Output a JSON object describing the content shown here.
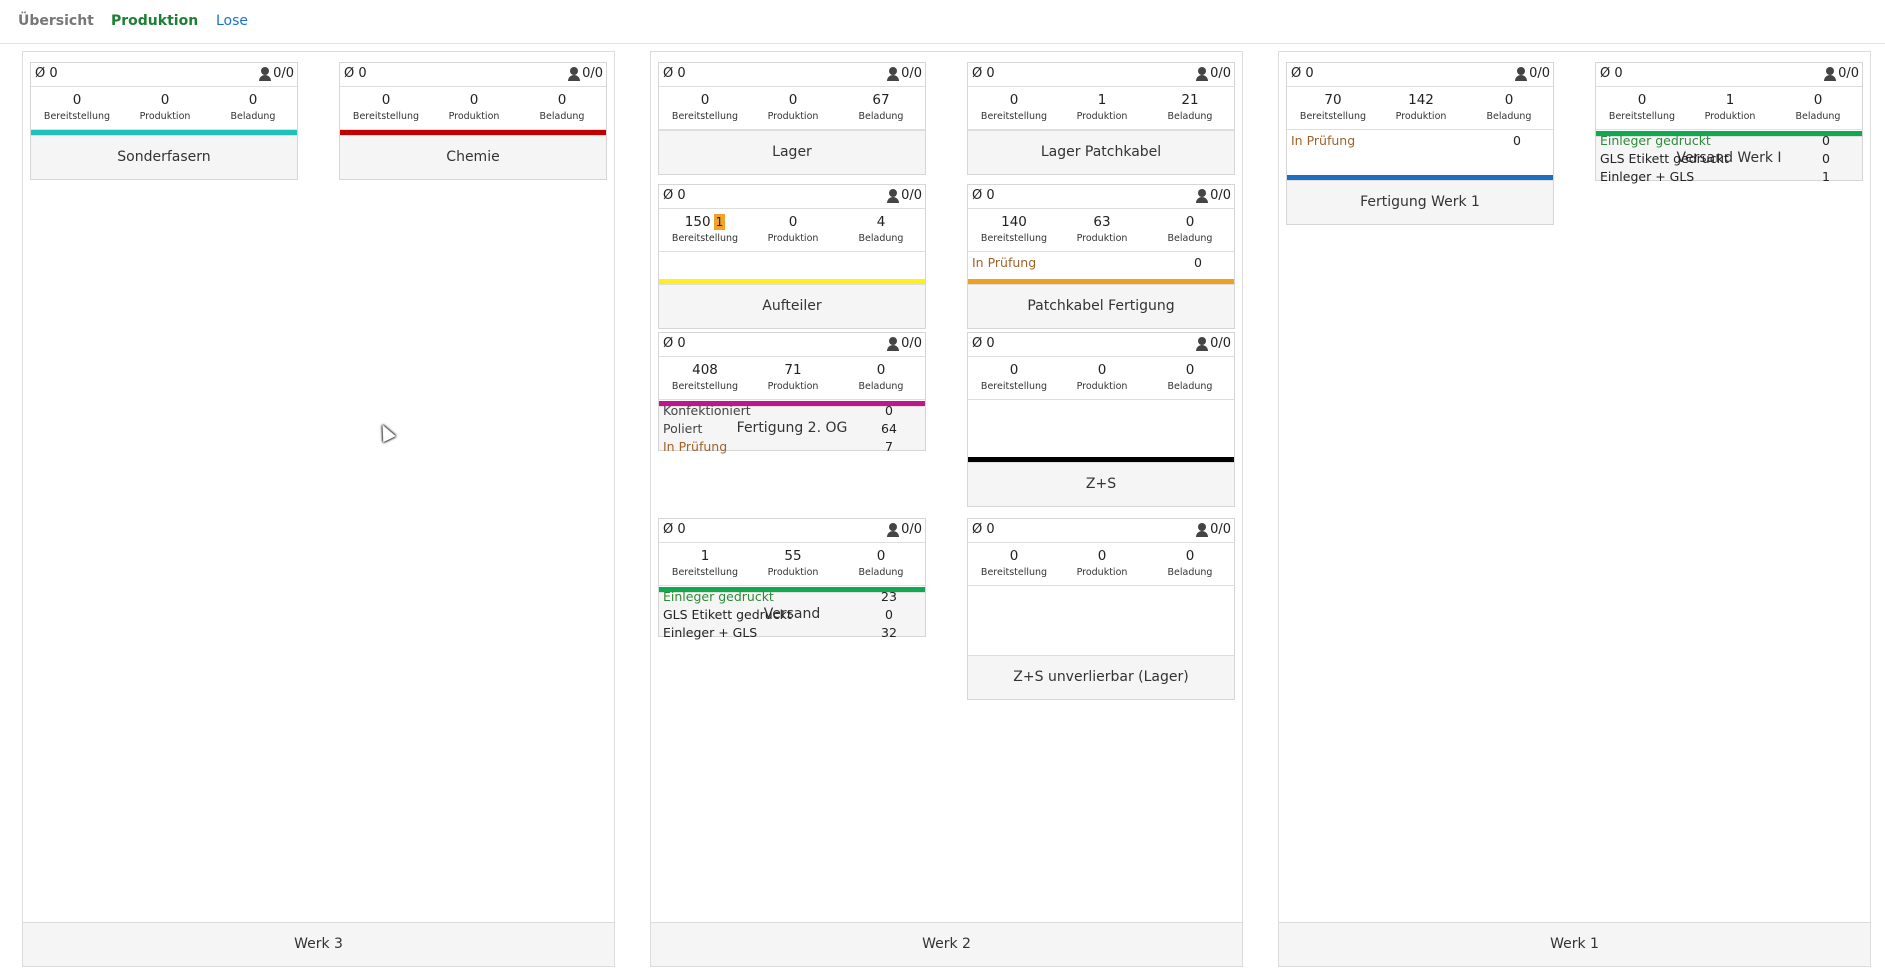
{
  "nav": {
    "tabs": [
      {
        "label": "Übersicht",
        "state": "inactive"
      },
      {
        "label": "Produktion",
        "state": "active"
      },
      {
        "label": "Lose",
        "state": "link"
      }
    ]
  },
  "stat_labels": {
    "bereitstellung": "Bereitstellung",
    "produktion": "Produktion",
    "beladung": "Beladung"
  },
  "panels": [
    {
      "title": "Werk 3",
      "cards": [
        {
          "avg": "Ø 0",
          "workers": "0/0",
          "bereitstellung": "0",
          "produktion": "0",
          "beladung": "0",
          "details": [],
          "bar_color": "#20c0b8",
          "title": "Sonderfasern"
        },
        {
          "avg": "Ø 0",
          "workers": "0/0",
          "bereitstellung": "0",
          "produktion": "0",
          "beladung": "0",
          "details": [],
          "bar_color": "#c00000",
          "title": "Chemie"
        }
      ]
    },
    {
      "title": "Werk 2",
      "cards": [
        {
          "avg": "Ø 0",
          "workers": "0/0",
          "bereitstellung": "0",
          "produktion": "0",
          "beladung": "67",
          "details": [],
          "bar_color": "",
          "title": "Lager"
        },
        {
          "avg": "Ø 0",
          "workers": "0/0",
          "bereitstellung": "0",
          "produktion": "1",
          "beladung": "21",
          "details": [],
          "bar_color": "",
          "title": "Lager Patchkabel"
        },
        {
          "avg": "Ø 0",
          "workers": "0/0",
          "bereitstellung": "150",
          "badge": "1",
          "produktion": "0",
          "beladung": "4",
          "details": [],
          "bar_color": "#ffee22",
          "title": "Aufteiler"
        },
        {
          "avg": "Ø 0",
          "workers": "0/0",
          "bereitstellung": "140",
          "produktion": "63",
          "beladung": "0",
          "details": [
            {
              "label": "In Prüfung",
              "value": "0",
              "color": "brown"
            }
          ],
          "bar_color": "#f0a020",
          "title": "Patchkabel Fertigung"
        },
        {
          "avg": "Ø 0",
          "workers": "0/0",
          "bereitstellung": "408",
          "produktion": "71",
          "beladung": "0",
          "details": [
            {
              "label": "Konfektioniert",
              "value": "0",
              "color": "grey"
            },
            {
              "label": "Poliert",
              "value": "64",
              "color": "grey"
            },
            {
              "label": "In Prüfung",
              "value": "7",
              "color": "brown"
            }
          ],
          "bar_color": "#c0168c",
          "title": "Fertigung 2. OG"
        },
        {
          "avg": "Ø 0",
          "workers": "0/0",
          "bereitstellung": "0",
          "produktion": "0",
          "beladung": "0",
          "details": [],
          "bar_color": "#000000",
          "title": "Z+S"
        },
        {
          "avg": "Ø 0",
          "workers": "0/0",
          "bereitstellung": "1",
          "produktion": "55",
          "beladung": "0",
          "details": [
            {
              "label": "Einleger gedruckt",
              "value": "23",
              "color": "green"
            },
            {
              "label": "GLS Etikett gedruckt",
              "value": "0",
              "color": "dark"
            },
            {
              "label": "Einleger + GLS",
              "value": "32",
              "color": "dark"
            }
          ],
          "bar_color": "#10a850",
          "title": "Versand"
        },
        {
          "avg": "Ø 0",
          "workers": "0/0",
          "bereitstellung": "0",
          "produktion": "0",
          "beladung": "0",
          "details": [],
          "bar_color": "",
          "title": "Z+S unverlierbar (Lager)"
        }
      ]
    },
    {
      "title": "Werk 1",
      "cards": [
        {
          "avg": "Ø 0",
          "workers": "0/0",
          "bereitstellung": "70",
          "produktion": "142",
          "beladung": "0",
          "details": [
            {
              "label": "In Prüfung",
              "value": "0",
              "color": "brown"
            }
          ],
          "bar_color": "#1f6fc0",
          "title": "Fertigung Werk 1"
        },
        {
          "avg": "Ø 0",
          "workers": "0/0",
          "bereitstellung": "0",
          "produktion": "1",
          "beladung": "0",
          "details": [
            {
              "label": "Einleger gedruckt",
              "value": "0",
              "color": "green"
            },
            {
              "label": "GLS Etikett gedruckt",
              "value": "0",
              "color": "dark"
            },
            {
              "label": "Einleger + GLS",
              "value": "1",
              "color": "dark"
            }
          ],
          "bar_color": "#10a850",
          "title": "Versand Werk I"
        }
      ]
    }
  ]
}
